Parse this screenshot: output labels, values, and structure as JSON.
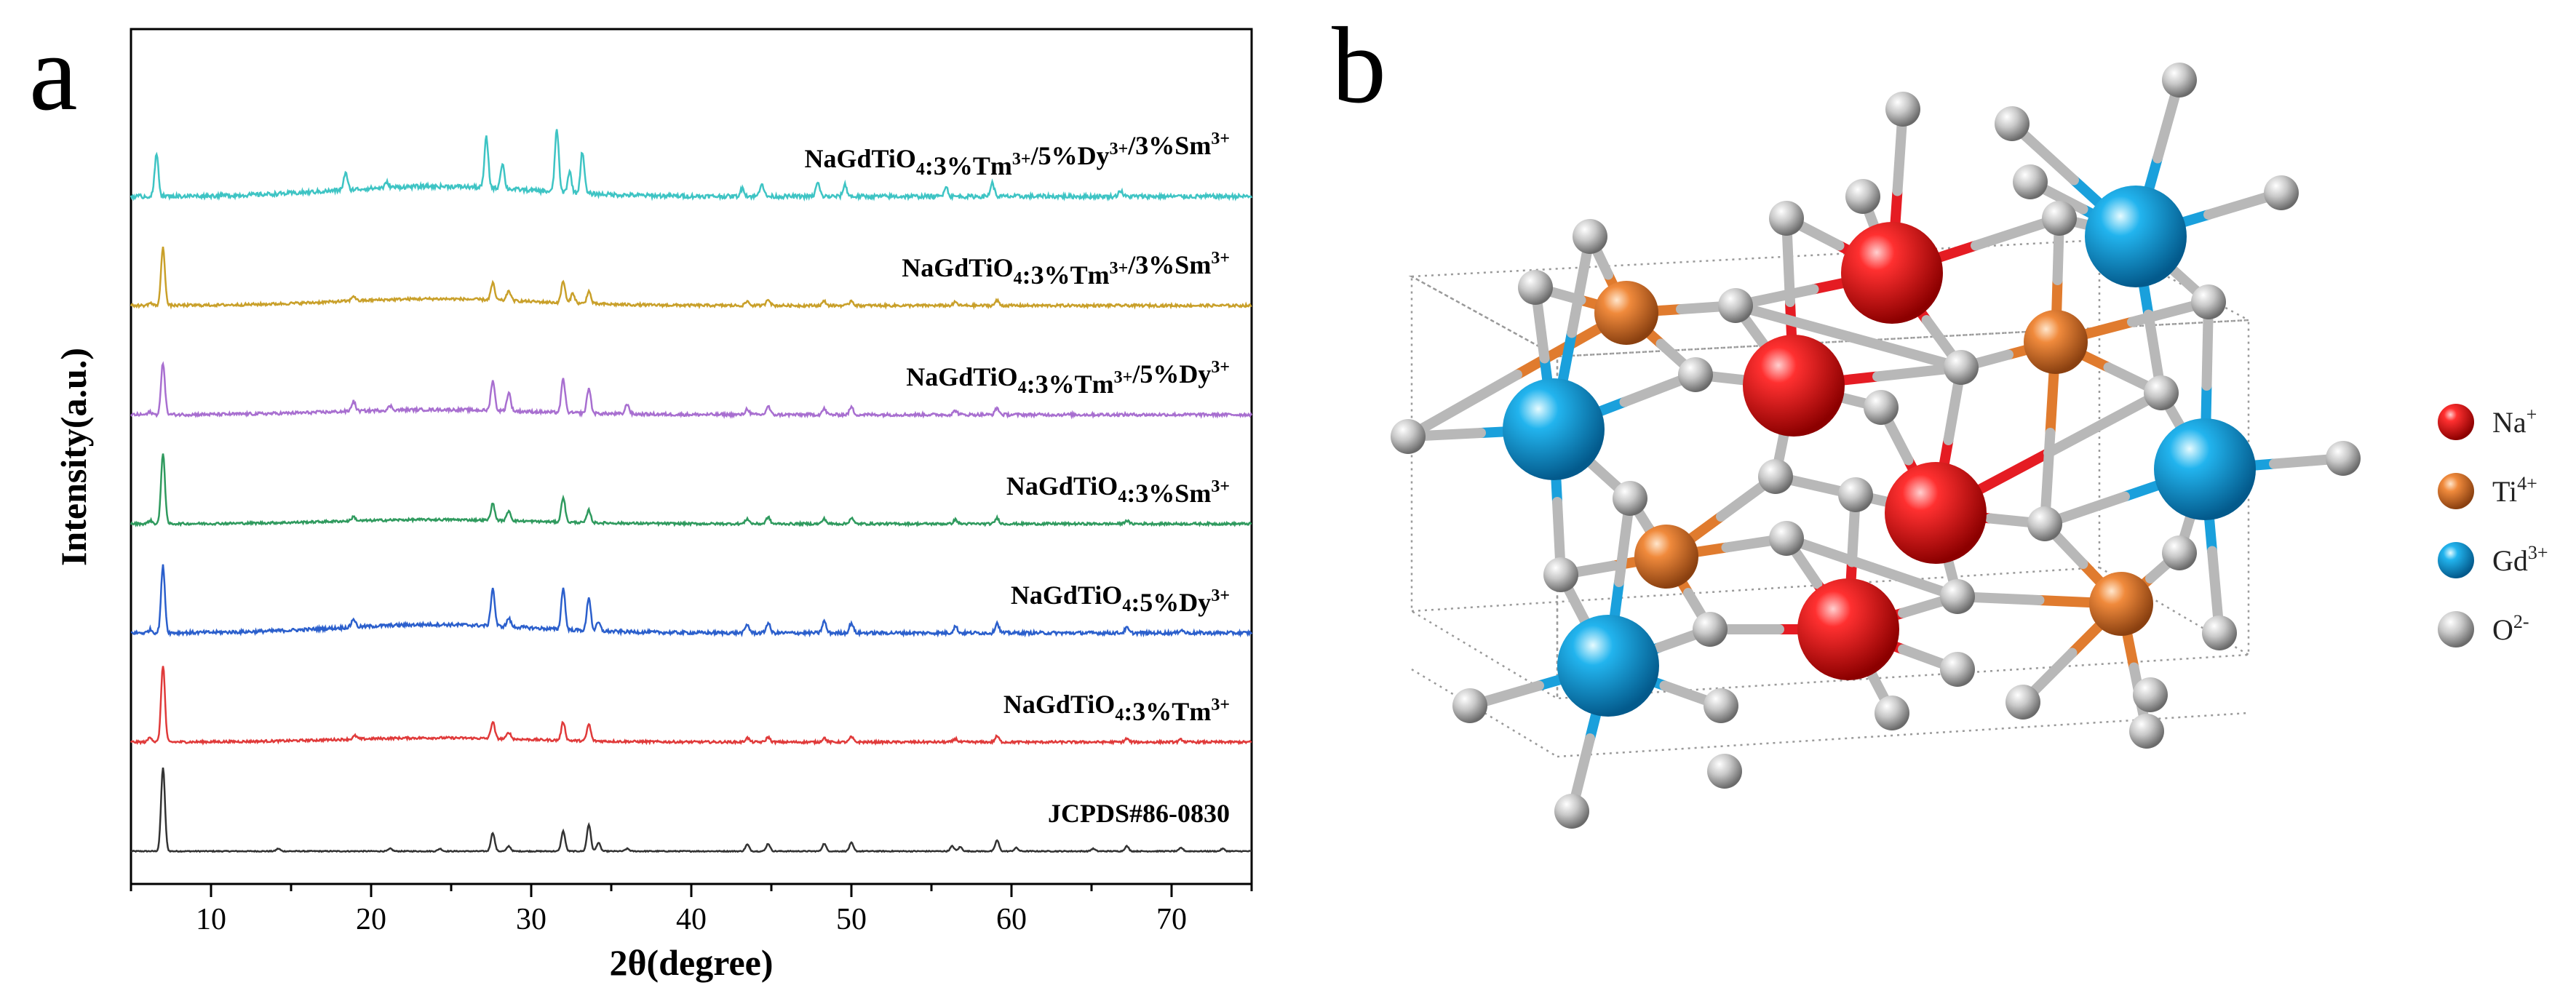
{
  "panel_a_label": "a",
  "panel_b_label": "b",
  "chart_data": {
    "type": "line",
    "title": "",
    "xlabel": "2θ(degree)",
    "ylabel": "Intensity(a.u.)",
    "xlim": [
      5,
      75
    ],
    "xticks": [
      10,
      20,
      30,
      40,
      50,
      60,
      70
    ],
    "grid": false,
    "series": [
      {
        "name": "JCPDS#86-0830",
        "label_parts": [
          {
            "t": "JCPDS#86-0830"
          }
        ],
        "color": "#333333",
        "offset": 0,
        "peaks": [
          [
            7.0,
            1.0
          ],
          [
            14.2,
            0.03
          ],
          [
            21.2,
            0.03
          ],
          [
            24.3,
            0.03
          ],
          [
            27.6,
            0.22
          ],
          [
            28.6,
            0.06
          ],
          [
            32.0,
            0.24
          ],
          [
            33.6,
            0.32
          ],
          [
            34.2,
            0.1
          ],
          [
            36.0,
            0.03
          ],
          [
            43.5,
            0.08
          ],
          [
            44.8,
            0.09
          ],
          [
            48.3,
            0.09
          ],
          [
            50.0,
            0.1
          ],
          [
            56.3,
            0.06
          ],
          [
            56.8,
            0.05
          ],
          [
            59.1,
            0.13
          ],
          [
            60.3,
            0.04
          ],
          [
            65.1,
            0.03
          ],
          [
            67.2,
            0.06
          ],
          [
            70.6,
            0.04
          ],
          [
            73.2,
            0.03
          ]
        ],
        "noise": 0.006,
        "hump": 0
      },
      {
        "name": "NaGdTiO4:3%Tm3+",
        "label_parts": [
          {
            "t": "NaGdTiO"
          },
          {
            "t": "4",
            "sub": true
          },
          {
            "t": ":3%Tm"
          },
          {
            "t": "3+",
            "sup": true
          }
        ],
        "color": "#e03a3a",
        "offset": 1,
        "peaks": [
          [
            6.2,
            0.06
          ],
          [
            7.0,
            0.92
          ],
          [
            19.0,
            0.04
          ],
          [
            27.6,
            0.2
          ],
          [
            28.6,
            0.08
          ],
          [
            32.0,
            0.22
          ],
          [
            33.6,
            0.2
          ],
          [
            43.5,
            0.05
          ],
          [
            44.8,
            0.06
          ],
          [
            48.3,
            0.05
          ],
          [
            50.0,
            0.06
          ],
          [
            56.5,
            0.04
          ],
          [
            59.1,
            0.07
          ],
          [
            67.2,
            0.04
          ],
          [
            70.6,
            0.03
          ]
        ],
        "noise": 0.014,
        "hump": 0.05
      },
      {
        "name": "NaGdTiO4:5%Dy3+",
        "label_parts": [
          {
            "t": "NaGdTiO"
          },
          {
            "t": "4",
            "sub": true
          },
          {
            "t": ":5%Dy"
          },
          {
            "t": "3+",
            "sup": true
          }
        ],
        "color": "#2b5fcc",
        "offset": 2,
        "peaks": [
          [
            6.2,
            0.04
          ],
          [
            7.0,
            0.8
          ],
          [
            18.9,
            0.1
          ],
          [
            27.6,
            0.45
          ],
          [
            28.6,
            0.1
          ],
          [
            32.0,
            0.5
          ],
          [
            33.6,
            0.4
          ],
          [
            34.2,
            0.1
          ],
          [
            43.5,
            0.1
          ],
          [
            44.8,
            0.12
          ],
          [
            48.3,
            0.14
          ],
          [
            50.0,
            0.12
          ],
          [
            56.5,
            0.08
          ],
          [
            59.1,
            0.12
          ],
          [
            67.2,
            0.06
          ],
          [
            70.6,
            0.04
          ]
        ],
        "noise": 0.02,
        "hump": 0.1
      },
      {
        "name": "NaGdTiO4:3%Sm3+",
        "label_parts": [
          {
            "t": "NaGdTiO"
          },
          {
            "t": "4",
            "sub": true
          },
          {
            "t": ":3%Sm"
          },
          {
            "t": "3+",
            "sup": true
          }
        ],
        "color": "#2f9a5e",
        "offset": 3,
        "peaks": [
          [
            6.2,
            0.04
          ],
          [
            7.0,
            0.85
          ],
          [
            18.9,
            0.05
          ],
          [
            27.6,
            0.2
          ],
          [
            28.6,
            0.12
          ],
          [
            32.0,
            0.3
          ],
          [
            33.6,
            0.15
          ],
          [
            43.5,
            0.06
          ],
          [
            44.8,
            0.08
          ],
          [
            48.3,
            0.06
          ],
          [
            50.0,
            0.07
          ],
          [
            56.5,
            0.05
          ],
          [
            59.1,
            0.07
          ],
          [
            67.2,
            0.04
          ]
        ],
        "noise": 0.014,
        "hump": 0.05
      },
      {
        "name": "NaGdTiO4:3%Tm3+/5%Dy3+",
        "label_parts": [
          {
            "t": "NaGdTiO"
          },
          {
            "t": "4",
            "sub": true
          },
          {
            "t": ":3%Tm"
          },
          {
            "t": "3+",
            "sup": true
          },
          {
            "t": "/5%Dy"
          },
          {
            "t": "3+",
            "sup": true
          }
        ],
        "color": "#a86fd0",
        "offset": 4,
        "peaks": [
          [
            6.2,
            0.03
          ],
          [
            7.0,
            0.62
          ],
          [
            18.9,
            0.12
          ],
          [
            21.2,
            0.05
          ],
          [
            27.6,
            0.36
          ],
          [
            28.6,
            0.22
          ],
          [
            32.0,
            0.4
          ],
          [
            33.6,
            0.3
          ],
          [
            36.0,
            0.12
          ],
          [
            43.5,
            0.07
          ],
          [
            44.8,
            0.1
          ],
          [
            48.3,
            0.07
          ],
          [
            50.0,
            0.09
          ],
          [
            56.5,
            0.05
          ],
          [
            59.1,
            0.08
          ]
        ],
        "noise": 0.018,
        "hump": 0.06
      },
      {
        "name": "NaGdTiO4:3%Tm3+/3%Sm3+",
        "label_parts": [
          {
            "t": "NaGdTiO"
          },
          {
            "t": "4",
            "sub": true
          },
          {
            "t": ":3%Tm"
          },
          {
            "t": "3+",
            "sup": true
          },
          {
            "t": "/3%Sm"
          },
          {
            "t": "3+",
            "sup": true
          }
        ],
        "color": "#c9a02a",
        "offset": 5,
        "peaks": [
          [
            6.2,
            0.03
          ],
          [
            7.0,
            0.7
          ],
          [
            18.9,
            0.06
          ],
          [
            27.6,
            0.2
          ],
          [
            28.6,
            0.12
          ],
          [
            32.0,
            0.26
          ],
          [
            32.6,
            0.12
          ],
          [
            33.6,
            0.15
          ],
          [
            43.5,
            0.05
          ],
          [
            44.8,
            0.08
          ],
          [
            48.3,
            0.05
          ],
          [
            50.0,
            0.06
          ],
          [
            56.5,
            0.04
          ],
          [
            59.1,
            0.06
          ]
        ],
        "noise": 0.016,
        "hump": 0.08
      },
      {
        "name": "NaGdTiO4:3%Tm3+/5%Dy3+/3%Sm3+",
        "label_parts": [
          {
            "t": "NaGdTiO"
          },
          {
            "t": "4",
            "sub": true
          },
          {
            "t": ":3%Tm"
          },
          {
            "t": "3+",
            "sup": true
          },
          {
            "t": "/5%Dy"
          },
          {
            "t": "3+",
            "sup": true
          },
          {
            "t": "/3%Sm"
          },
          {
            "t": "3+",
            "sup": true
          }
        ],
        "color": "#3ec4c4",
        "offset": 6,
        "peaks": [
          [
            6.6,
            0.5
          ],
          [
            18.4,
            0.2
          ],
          [
            21.0,
            0.06
          ],
          [
            27.2,
            0.6
          ],
          [
            28.2,
            0.3
          ],
          [
            31.6,
            0.75
          ],
          [
            32.4,
            0.25
          ],
          [
            33.2,
            0.5
          ],
          [
            43.2,
            0.1
          ],
          [
            44.4,
            0.16
          ],
          [
            47.9,
            0.16
          ],
          [
            49.6,
            0.14
          ],
          [
            55.9,
            0.12
          ],
          [
            58.8,
            0.16
          ],
          [
            66.8,
            0.07
          ]
        ],
        "noise": 0.025,
        "hump": 0.12
      }
    ]
  },
  "structure": {
    "legend": [
      {
        "name": "Na",
        "charge": "+",
        "color": "#e51c23",
        "highlight": "#ff9a9a"
      },
      {
        "name": "Ti",
        "charge": "4+",
        "color": "#e07b2e",
        "highlight": "#ffd2a8"
      },
      {
        "name": "Gd",
        "charge": "3+",
        "color": "#1aa0dc",
        "highlight": "#aee9ff"
      },
      {
        "name": "O",
        "charge": "2-",
        "color": "#b0b0b0",
        "highlight": "#ffffff"
      }
    ]
  }
}
